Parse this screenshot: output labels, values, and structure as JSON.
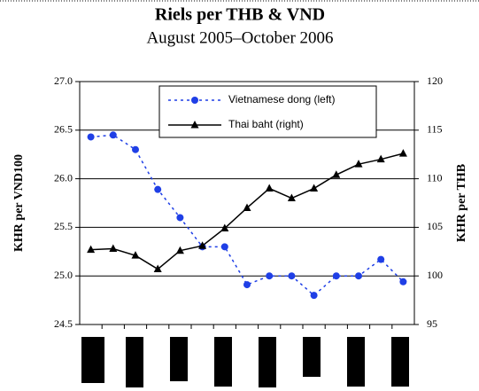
{
  "chart_data": {
    "type": "line",
    "title": "Riels per THB & VND",
    "subtitle": "August 2005–October 2006",
    "y_label": "KHR per VND100",
    "y2_label": "KHR per THB",
    "categories": [
      null,
      null,
      null,
      null,
      null,
      null,
      null,
      null,
      null,
      null,
      null,
      null,
      null,
      null,
      null
    ],
    "series": [
      {
        "name": "Vietnamese dong (left)",
        "color": "#1f3fe6",
        "linestyle": "dotted",
        "marker": "circle",
        "axis": "y",
        "values": [
          26.43,
          26.45,
          26.3,
          25.89,
          25.6,
          25.3,
          25.3,
          24.91,
          25.0,
          25.0,
          24.8,
          25.0,
          25.0,
          25.17,
          24.94
        ]
      },
      {
        "name": "Thai baht (right)",
        "color": "#000000",
        "linestyle": "solid",
        "marker": "triangle",
        "axis": "y2",
        "values": [
          102.7,
          102.8,
          102.1,
          100.7,
          102.6,
          103.1,
          104.9,
          107.0,
          109.0,
          108.0,
          109.0,
          110.4,
          111.5,
          112.0,
          112.6
        ]
      }
    ],
    "ylim": [
      24.5,
      27.0
    ],
    "yticks": [
      {
        "value": 24.5,
        "label": "24.5"
      },
      {
        "value": 25.0,
        "label": "25.0"
      },
      {
        "value": 25.5,
        "label": "25.5"
      },
      {
        "value": 26.0,
        "label": "26.0"
      },
      {
        "value": 26.5,
        "label": "26.5"
      },
      {
        "value": 27.0,
        "label": "27.0"
      }
    ],
    "y2lim": [
      95,
      120
    ],
    "y2ticks": [
      95,
      100,
      105,
      110,
      115,
      120
    ],
    "grid": true,
    "legend": "top"
  }
}
